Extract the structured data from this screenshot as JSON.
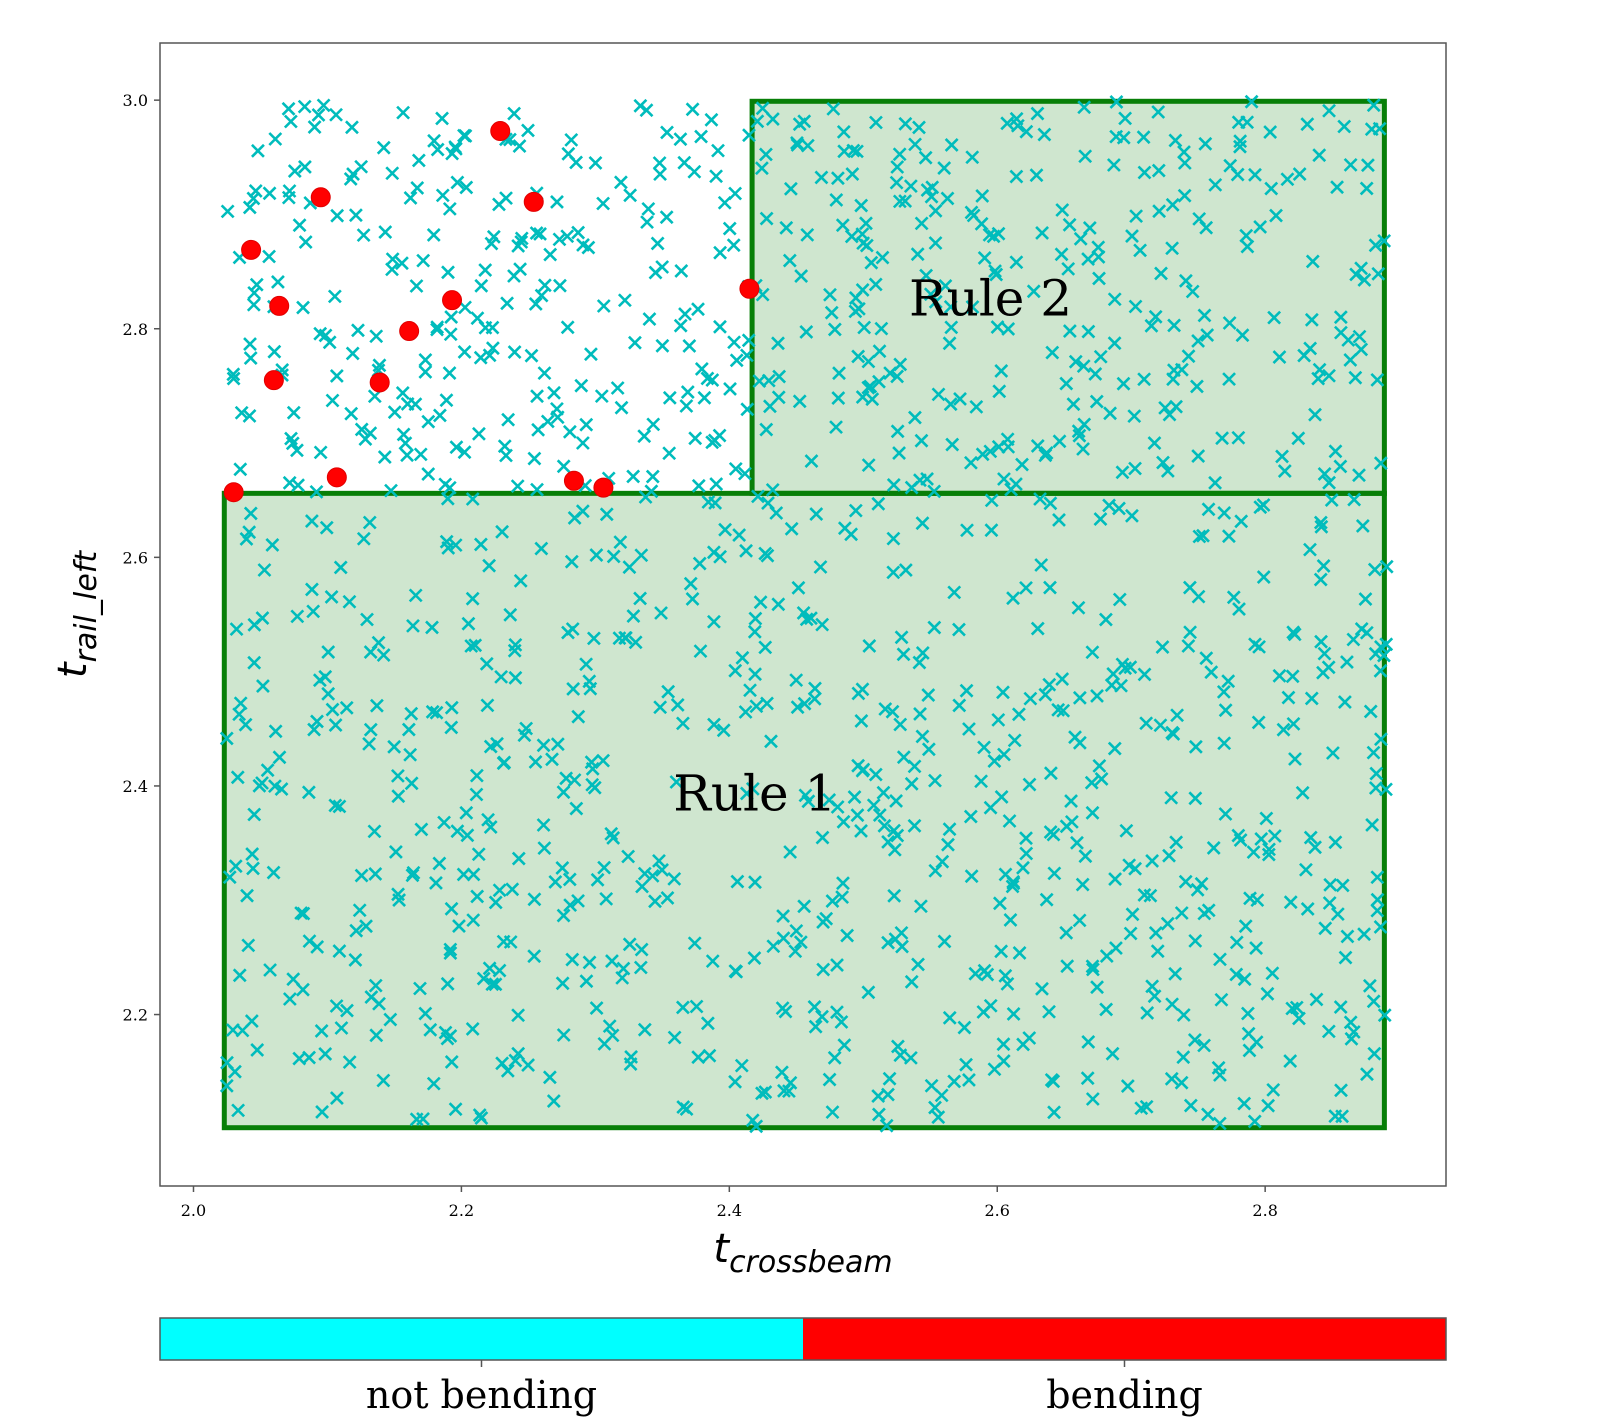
{
  "chart_data": {
    "type": "scatter",
    "title": "",
    "xlabel": {
      "base": "t",
      "sub": "crossbeam"
    },
    "ylabel": {
      "base": "t",
      "sub": "rail_left"
    },
    "xlim": [
      1.975,
      2.935
    ],
    "ylim": [
      2.05,
      3.05
    ],
    "xticks": [
      {
        "value": 2.0,
        "label": "2.0"
      },
      {
        "value": 2.2,
        "label": "2.2"
      },
      {
        "value": 2.4,
        "label": "2.4"
      },
      {
        "value": 2.6,
        "label": "2.6"
      },
      {
        "value": 2.8,
        "label": "2.8"
      }
    ],
    "yticks": [
      {
        "value": 2.2,
        "label": "2.2"
      },
      {
        "value": 2.4,
        "label": "2.4"
      },
      {
        "value": 2.6,
        "label": "2.6"
      },
      {
        "value": 2.8,
        "label": "2.8"
      },
      {
        "value": 3.0,
        "label": "3.0"
      }
    ],
    "grid": false,
    "rules": [
      {
        "label": "Rule 1",
        "x0": 2.023,
        "x1": 2.889,
        "y0": 2.101,
        "y1": 2.656,
        "label_x": 2.419,
        "label_y": 2.39
      },
      {
        "label": "Rule 2",
        "x0": 2.417,
        "x1": 2.889,
        "y0": 2.656,
        "y1": 2.999,
        "label_x": 2.595,
        "label_y": 2.823
      }
    ],
    "colors": {
      "not_bending": "#00bcbc",
      "bending": "#ff0000",
      "rule_fill": "#cfe6cf",
      "rule_edge": "#087f08",
      "colorbar_left": "#00ffff",
      "colorbar_right": "#ff0000"
    },
    "series": [
      {
        "name": "bending",
        "marker": "circle",
        "x": [
          2.095,
          2.229,
          2.254,
          2.043,
          2.064,
          2.193,
          2.161,
          2.06,
          2.139,
          2.415,
          2.107,
          2.284,
          2.306,
          2.03
        ],
        "y": [
          2.915,
          2.973,
          2.911,
          2.869,
          2.82,
          2.825,
          2.798,
          2.755,
          2.753,
          2.835,
          2.67,
          2.667,
          2.661,
          2.657
        ]
      }
    ],
    "not_bending_generator": {
      "marker": "x",
      "seed": 20240611,
      "note_count_upper_left": 260,
      "note_count_rule_1": 760,
      "note_count_rule_2": 300
    },
    "colorbar": {
      "labels": [
        "not bending",
        "bending"
      ]
    }
  }
}
